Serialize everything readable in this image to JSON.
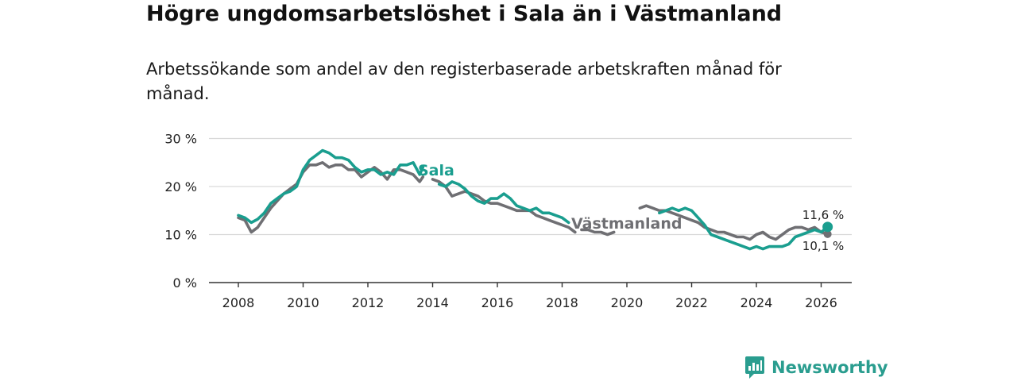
{
  "header": {
    "title": "Högre ungdomsarbetslöshet i Sala än i Västmanland",
    "subtitle": "Arbetssökande som andel av den registerbaserade arbetskraften månad för månad."
  },
  "brand": {
    "name": "Newsworthy"
  },
  "colors": {
    "sala": "#1a9e8f",
    "vastmanland": "#6f6f73",
    "grid": "#d9d9d9",
    "axis": "#333333"
  },
  "chart_data": {
    "type": "line",
    "title": "Högre ungdomsarbetslöshet i Sala än i Västmanland",
    "xlabel": "",
    "ylabel": "",
    "xlim": [
      2007.5,
      2027.0
    ],
    "ylim": [
      0,
      30
    ],
    "y_ticks": [
      0,
      10,
      20,
      30
    ],
    "y_tick_labels": [
      "0 %",
      "10 %",
      "20 %",
      "30 %"
    ],
    "x_ticks": [
      2008,
      2010,
      2012,
      2014,
      2016,
      2018,
      2020,
      2022,
      2024,
      2026
    ],
    "x_tick_labels": [
      "2008",
      "2010",
      "2012",
      "2014",
      "2016",
      "2018",
      "2020",
      "2022",
      "2024",
      "2026"
    ],
    "grid": true,
    "series": [
      {
        "name": "Sala",
        "label": "Sala",
        "end_label": "11,6 %",
        "end_value": 11.6,
        "segments": [
          [
            [
              2008.0,
              14.0
            ],
            [
              2008.2,
              13.5
            ],
            [
              2008.4,
              12.5
            ],
            [
              2008.6,
              13.2
            ],
            [
              2008.8,
              14.5
            ],
            [
              2009.0,
              16.5
            ],
            [
              2009.2,
              17.5
            ],
            [
              2009.4,
              18.5
            ],
            [
              2009.6,
              19.0
            ],
            [
              2009.8,
              20.0
            ],
            [
              2010.0,
              23.5
            ],
            [
              2010.2,
              25.5
            ],
            [
              2010.4,
              26.5
            ],
            [
              2010.6,
              27.5
            ],
            [
              2010.8,
              27.0
            ],
            [
              2011.0,
              26.0
            ],
            [
              2011.2,
              26.0
            ],
            [
              2011.4,
              25.5
            ],
            [
              2011.6,
              24.0
            ],
            [
              2011.8,
              23.0
            ],
            [
              2012.0,
              23.5
            ],
            [
              2012.2,
              23.5
            ],
            [
              2012.4,
              22.5
            ],
            [
              2012.6,
              23.0
            ],
            [
              2012.8,
              22.5
            ],
            [
              2013.0,
              24.5
            ],
            [
              2013.2,
              24.5
            ],
            [
              2013.4,
              25.0
            ],
            [
              2013.6,
              22.5
            ],
            [
              2013.7,
              24.0
            ]
          ],
          [
            [
              2014.2,
              20.5
            ],
            [
              2014.4,
              20.0
            ],
            [
              2014.6,
              21.0
            ],
            [
              2014.8,
              20.5
            ],
            [
              2015.0,
              19.5
            ],
            [
              2015.2,
              18.0
            ],
            [
              2015.4,
              17.0
            ],
            [
              2015.6,
              16.5
            ],
            [
              2015.8,
              17.5
            ],
            [
              2016.0,
              17.5
            ],
            [
              2016.2,
              18.5
            ],
            [
              2016.4,
              17.5
            ],
            [
              2016.6,
              16.0
            ],
            [
              2016.8,
              15.5
            ],
            [
              2017.0,
              15.0
            ],
            [
              2017.2,
              15.5
            ],
            [
              2017.4,
              14.5
            ],
            [
              2017.6,
              14.5
            ],
            [
              2017.8,
              14.0
            ],
            [
              2018.0,
              13.5
            ],
            [
              2018.2,
              12.5
            ]
          ],
          [
            [
              2021.0,
              14.5
            ],
            [
              2021.2,
              15.0
            ],
            [
              2021.4,
              15.5
            ],
            [
              2021.6,
              15.0
            ],
            [
              2021.8,
              15.5
            ],
            [
              2022.0,
              15.0
            ],
            [
              2022.2,
              13.5
            ],
            [
              2022.4,
              12.0
            ],
            [
              2022.6,
              10.0
            ],
            [
              2022.8,
              9.5
            ],
            [
              2023.0,
              9.0
            ],
            [
              2023.2,
              8.5
            ],
            [
              2023.4,
              8.0
            ],
            [
              2023.6,
              7.5
            ],
            [
              2023.8,
              7.0
            ],
            [
              2024.0,
              7.5
            ],
            [
              2024.2,
              7.0
            ],
            [
              2024.4,
              7.5
            ],
            [
              2024.6,
              7.5
            ],
            [
              2024.8,
              7.5
            ],
            [
              2025.0,
              8.0
            ],
            [
              2025.2,
              9.5
            ],
            [
              2025.4,
              10.0
            ],
            [
              2025.6,
              10.5
            ],
            [
              2025.8,
              11.0
            ],
            [
              2026.0,
              10.5
            ],
            [
              2026.2,
              11.6
            ]
          ]
        ]
      },
      {
        "name": "Västmanland",
        "label": "Västmanland",
        "end_label": "10,1 %",
        "end_value": 10.1,
        "segments": [
          [
            [
              2008.0,
              13.5
            ],
            [
              2008.2,
              13.0
            ],
            [
              2008.4,
              10.5
            ],
            [
              2008.6,
              11.5
            ],
            [
              2008.8,
              13.5
            ],
            [
              2009.0,
              15.5
            ],
            [
              2009.2,
              17.0
            ],
            [
              2009.4,
              18.5
            ],
            [
              2009.6,
              19.5
            ],
            [
              2009.8,
              20.5
            ],
            [
              2010.0,
              23.0
            ],
            [
              2010.2,
              24.5
            ],
            [
              2010.4,
              24.5
            ],
            [
              2010.6,
              25.0
            ],
            [
              2010.8,
              24.0
            ],
            [
              2011.0,
              24.5
            ],
            [
              2011.2,
              24.5
            ],
            [
              2011.4,
              23.5
            ],
            [
              2011.6,
              23.5
            ],
            [
              2011.8,
              22.0
            ],
            [
              2012.0,
              23.0
            ],
            [
              2012.2,
              24.0
            ],
            [
              2012.4,
              23.0
            ],
            [
              2012.6,
              21.5
            ],
            [
              2012.8,
              23.5
            ],
            [
              2013.0,
              23.5
            ],
            [
              2013.2,
              23.0
            ],
            [
              2013.4,
              22.5
            ],
            [
              2013.6,
              21.0
            ],
            [
              2013.7,
              22.0
            ]
          ],
          [
            [
              2014.0,
              21.5
            ],
            [
              2014.2,
              21.0
            ],
            [
              2014.4,
              20.0
            ],
            [
              2014.6,
              18.0
            ],
            [
              2014.8,
              18.5
            ],
            [
              2015.0,
              19.0
            ],
            [
              2015.2,
              18.5
            ],
            [
              2015.4,
              18.0
            ],
            [
              2015.6,
              17.0
            ],
            [
              2015.8,
              16.5
            ],
            [
              2016.0,
              16.5
            ],
            [
              2016.2,
              16.0
            ],
            [
              2016.4,
              15.5
            ],
            [
              2016.6,
              15.0
            ],
            [
              2016.8,
              15.0
            ],
            [
              2017.0,
              15.0
            ],
            [
              2017.2,
              14.0
            ],
            [
              2017.4,
              13.5
            ],
            [
              2017.6,
              13.0
            ],
            [
              2017.8,
              12.5
            ],
            [
              2018.0,
              12.0
            ],
            [
              2018.2,
              11.5
            ],
            [
              2018.4,
              10.5
            ]
          ],
          [
            [
              2018.6,
              11.0
            ],
            [
              2018.8,
              11.0
            ],
            [
              2019.0,
              10.5
            ],
            [
              2019.2,
              10.5
            ],
            [
              2019.4,
              10.0
            ],
            [
              2019.6,
              10.5
            ]
          ],
          [
            [
              2020.4,
              15.5
            ],
            [
              2020.6,
              16.0
            ],
            [
              2020.8,
              15.5
            ],
            [
              2021.0,
              15.0
            ],
            [
              2021.2,
              15.0
            ],
            [
              2021.4,
              14.5
            ],
            [
              2021.6,
              14.0
            ],
            [
              2021.8,
              13.5
            ],
            [
              2022.0,
              13.0
            ],
            [
              2022.2,
              12.5
            ],
            [
              2022.4,
              11.5
            ],
            [
              2022.6,
              11.0
            ],
            [
              2022.8,
              10.5
            ],
            [
              2023.0,
              10.5
            ],
            [
              2023.2,
              10.0
            ],
            [
              2023.4,
              9.5
            ],
            [
              2023.6,
              9.5
            ],
            [
              2023.8,
              9.0
            ],
            [
              2024.0,
              10.0
            ],
            [
              2024.2,
              10.5
            ],
            [
              2024.4,
              9.5
            ],
            [
              2024.6,
              9.0
            ],
            [
              2024.8,
              10.0
            ],
            [
              2025.0,
              11.0
            ],
            [
              2025.2,
              11.5
            ],
            [
              2025.4,
              11.5
            ],
            [
              2025.6,
              11.0
            ],
            [
              2025.8,
              11.5
            ],
            [
              2026.0,
              10.5
            ],
            [
              2026.2,
              10.1
            ]
          ]
        ]
      }
    ]
  }
}
